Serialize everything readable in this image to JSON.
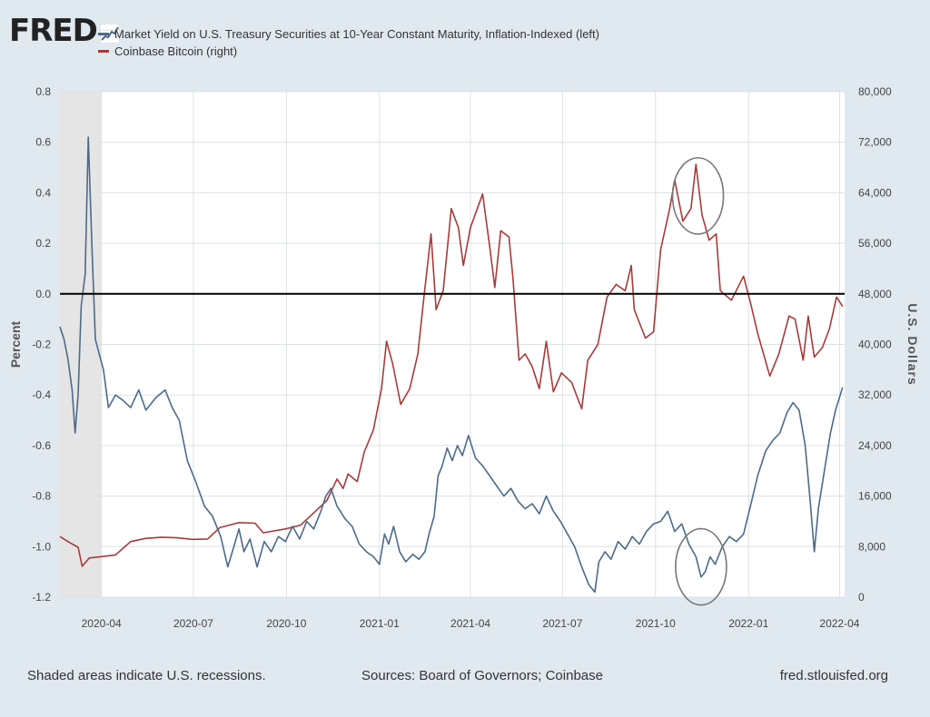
{
  "header": {
    "logo_text": "FRED"
  },
  "chart_data": {
    "type": "line",
    "series": [
      {
        "name": "Market Yield on U.S. Treasury Securities at 10-Year Constant Maturity, Inflation-Indexed (left)",
        "axis": "left",
        "color": "#4d6a8a",
        "points": [
          [
            "2020-02-20",
            -0.13
          ],
          [
            "2020-02-24",
            -0.18
          ],
          [
            "2020-02-28",
            -0.26
          ],
          [
            "2020-03-03",
            -0.38
          ],
          [
            "2020-03-06",
            -0.55
          ],
          [
            "2020-03-09",
            -0.4
          ],
          [
            "2020-03-12",
            -0.05
          ],
          [
            "2020-03-16",
            0.08
          ],
          [
            "2020-03-19",
            0.62
          ],
          [
            "2020-03-23",
            0.15
          ],
          [
            "2020-03-26",
            -0.18
          ],
          [
            "2020-03-30",
            -0.24
          ],
          [
            "2020-04-03",
            -0.3
          ],
          [
            "2020-04-08",
            -0.45
          ],
          [
            "2020-04-15",
            -0.4
          ],
          [
            "2020-04-22",
            -0.42
          ],
          [
            "2020-04-30",
            -0.45
          ],
          [
            "2020-05-08",
            -0.38
          ],
          [
            "2020-05-15",
            -0.46
          ],
          [
            "2020-05-25",
            -0.41
          ],
          [
            "2020-06-03",
            -0.38
          ],
          [
            "2020-06-10",
            -0.45
          ],
          [
            "2020-06-17",
            -0.5
          ],
          [
            "2020-06-25",
            -0.66
          ],
          [
            "2020-07-03",
            -0.74
          ],
          [
            "2020-07-12",
            -0.84
          ],
          [
            "2020-07-20",
            -0.88
          ],
          [
            "2020-07-28",
            -0.96
          ],
          [
            "2020-08-04",
            -1.08
          ],
          [
            "2020-08-10",
            -1.0
          ],
          [
            "2020-08-15",
            -0.93
          ],
          [
            "2020-08-20",
            -1.02
          ],
          [
            "2020-08-26",
            -0.97
          ],
          [
            "2020-09-02",
            -1.08
          ],
          [
            "2020-09-09",
            -0.98
          ],
          [
            "2020-09-16",
            -1.02
          ],
          [
            "2020-09-23",
            -0.96
          ],
          [
            "2020-09-30",
            -0.98
          ],
          [
            "2020-10-07",
            -0.92
          ],
          [
            "2020-10-14",
            -0.97
          ],
          [
            "2020-10-21",
            -0.9
          ],
          [
            "2020-10-28",
            -0.93
          ],
          [
            "2020-11-04",
            -0.86
          ],
          [
            "2020-11-09",
            -0.8
          ],
          [
            "2020-11-14",
            -0.77
          ],
          [
            "2020-11-20",
            -0.84
          ],
          [
            "2020-11-28",
            -0.89
          ],
          [
            "2020-12-05",
            -0.92
          ],
          [
            "2020-12-12",
            -0.99
          ],
          [
            "2020-12-19",
            -1.02
          ],
          [
            "2020-12-26",
            -1.04
          ],
          [
            "2021-01-01",
            -1.07
          ],
          [
            "2021-01-06",
            -0.95
          ],
          [
            "2021-01-10",
            -0.99
          ],
          [
            "2021-01-15",
            -0.92
          ],
          [
            "2021-01-21",
            -1.02
          ],
          [
            "2021-01-27",
            -1.06
          ],
          [
            "2021-02-03",
            -1.03
          ],
          [
            "2021-02-09",
            -1.05
          ],
          [
            "2021-02-15",
            -1.02
          ],
          [
            "2021-02-19",
            -0.95
          ],
          [
            "2021-02-24",
            -0.88
          ],
          [
            "2021-02-28",
            -0.72
          ],
          [
            "2021-03-04",
            -0.68
          ],
          [
            "2021-03-09",
            -0.61
          ],
          [
            "2021-03-14",
            -0.66
          ],
          [
            "2021-03-19",
            -0.6
          ],
          [
            "2021-03-24",
            -0.64
          ],
          [
            "2021-03-30",
            -0.56
          ],
          [
            "2021-04-06",
            -0.65
          ],
          [
            "2021-04-13",
            -0.68
          ],
          [
            "2021-04-20",
            -0.72
          ],
          [
            "2021-04-27",
            -0.76
          ],
          [
            "2021-05-04",
            -0.8
          ],
          [
            "2021-05-11",
            -0.77
          ],
          [
            "2021-05-18",
            -0.82
          ],
          [
            "2021-05-25",
            -0.85
          ],
          [
            "2021-06-01",
            -0.83
          ],
          [
            "2021-06-08",
            -0.87
          ],
          [
            "2021-06-15",
            -0.8
          ],
          [
            "2021-06-22",
            -0.86
          ],
          [
            "2021-06-29",
            -0.9
          ],
          [
            "2021-07-06",
            -0.95
          ],
          [
            "2021-07-13",
            -1.0
          ],
          [
            "2021-07-20",
            -1.08
          ],
          [
            "2021-07-27",
            -1.15
          ],
          [
            "2021-08-02",
            -1.18
          ],
          [
            "2021-08-06",
            -1.06
          ],
          [
            "2021-08-12",
            -1.02
          ],
          [
            "2021-08-18",
            -1.05
          ],
          [
            "2021-08-25",
            -0.98
          ],
          [
            "2021-09-01",
            -1.01
          ],
          [
            "2021-09-08",
            -0.96
          ],
          [
            "2021-09-15",
            -0.99
          ],
          [
            "2021-09-22",
            -0.94
          ],
          [
            "2021-09-29",
            -0.91
          ],
          [
            "2021-10-06",
            -0.9
          ],
          [
            "2021-10-13",
            -0.86
          ],
          [
            "2021-10-20",
            -0.94
          ],
          [
            "2021-10-27",
            -0.91
          ],
          [
            "2021-11-03",
            -0.99
          ],
          [
            "2021-11-10",
            -1.04
          ],
          [
            "2021-11-15",
            -1.12
          ],
          [
            "2021-11-19",
            -1.1
          ],
          [
            "2021-11-24",
            -1.04
          ],
          [
            "2021-11-29",
            -1.07
          ],
          [
            "2021-12-06",
            -1.0
          ],
          [
            "2021-12-13",
            -0.96
          ],
          [
            "2021-12-20",
            -0.98
          ],
          [
            "2021-12-27",
            -0.95
          ],
          [
            "2022-01-04",
            -0.82
          ],
          [
            "2022-01-10",
            -0.72
          ],
          [
            "2022-01-18",
            -0.62
          ],
          [
            "2022-01-25",
            -0.58
          ],
          [
            "2022-02-01",
            -0.55
          ],
          [
            "2022-02-08",
            -0.47
          ],
          [
            "2022-02-14",
            -0.43
          ],
          [
            "2022-02-20",
            -0.46
          ],
          [
            "2022-02-26",
            -0.6
          ],
          [
            "2022-03-03",
            -0.82
          ],
          [
            "2022-03-07",
            -1.02
          ],
          [
            "2022-03-11",
            -0.85
          ],
          [
            "2022-03-17",
            -0.7
          ],
          [
            "2022-03-23",
            -0.55
          ],
          [
            "2022-03-28",
            -0.46
          ],
          [
            "2022-04-04",
            -0.37
          ]
        ]
      },
      {
        "name": "Coinbase Bitcoin (right)",
        "axis": "right",
        "color": "#a83a3a",
        "points": [
          [
            "2020-02-20",
            9600
          ],
          [
            "2020-03-01",
            8600
          ],
          [
            "2020-03-09",
            7900
          ],
          [
            "2020-03-13",
            4900
          ],
          [
            "2020-03-20",
            6200
          ],
          [
            "2020-03-31",
            6400
          ],
          [
            "2020-04-15",
            6700
          ],
          [
            "2020-04-30",
            8800
          ],
          [
            "2020-05-15",
            9300
          ],
          [
            "2020-05-31",
            9500
          ],
          [
            "2020-06-15",
            9400
          ],
          [
            "2020-06-30",
            9150
          ],
          [
            "2020-07-15",
            9200
          ],
          [
            "2020-07-27",
            11000
          ],
          [
            "2020-08-15",
            11800
          ],
          [
            "2020-08-31",
            11700
          ],
          [
            "2020-09-08",
            10200
          ],
          [
            "2020-09-30",
            10800
          ],
          [
            "2020-10-15",
            11400
          ],
          [
            "2020-10-31",
            13800
          ],
          [
            "2020-11-10",
            15300
          ],
          [
            "2020-11-20",
            18700
          ],
          [
            "2020-11-26",
            17200
          ],
          [
            "2020-12-01",
            19500
          ],
          [
            "2020-12-10",
            18300
          ],
          [
            "2020-12-17",
            23000
          ],
          [
            "2020-12-26",
            26500
          ],
          [
            "2021-01-03",
            33000
          ],
          [
            "2021-01-08",
            40500
          ],
          [
            "2021-01-14",
            37000
          ],
          [
            "2021-01-22",
            30500
          ],
          [
            "2021-01-31",
            33000
          ],
          [
            "2021-02-08",
            38500
          ],
          [
            "2021-02-14",
            47500
          ],
          [
            "2021-02-21",
            57500
          ],
          [
            "2021-02-26",
            45500
          ],
          [
            "2021-03-05",
            48500
          ],
          [
            "2021-03-13",
            61500
          ],
          [
            "2021-03-20",
            58500
          ],
          [
            "2021-03-25",
            52500
          ],
          [
            "2021-04-01",
            58500
          ],
          [
            "2021-04-13",
            63800
          ],
          [
            "2021-04-20",
            55500
          ],
          [
            "2021-04-25",
            49000
          ],
          [
            "2021-05-01",
            58000
          ],
          [
            "2021-05-09",
            57000
          ],
          [
            "2021-05-13",
            50500
          ],
          [
            "2021-05-19",
            37500
          ],
          [
            "2021-05-25",
            38500
          ],
          [
            "2021-06-01",
            36500
          ],
          [
            "2021-06-08",
            33000
          ],
          [
            "2021-06-15",
            40500
          ],
          [
            "2021-06-22",
            32500
          ],
          [
            "2021-06-30",
            35500
          ],
          [
            "2021-07-10",
            34000
          ],
          [
            "2021-07-20",
            29800
          ],
          [
            "2021-07-26",
            37500
          ],
          [
            "2021-08-05",
            40000
          ],
          [
            "2021-08-14",
            47500
          ],
          [
            "2021-08-23",
            49500
          ],
          [
            "2021-09-01",
            48500
          ],
          [
            "2021-09-07",
            52500
          ],
          [
            "2021-09-10",
            45500
          ],
          [
            "2021-09-21",
            41000
          ],
          [
            "2021-09-29",
            42000
          ],
          [
            "2021-10-06",
            55000
          ],
          [
            "2021-10-15",
            61500
          ],
          [
            "2021-10-20",
            66000
          ],
          [
            "2021-10-28",
            59500
          ],
          [
            "2021-11-05",
            61500
          ],
          [
            "2021-11-10",
            68500
          ],
          [
            "2021-11-16",
            60500
          ],
          [
            "2021-11-23",
            56500
          ],
          [
            "2021-11-30",
            57500
          ],
          [
            "2021-12-04",
            48500
          ],
          [
            "2021-12-15",
            47000
          ],
          [
            "2021-12-27",
            50800
          ],
          [
            "2022-01-03",
            46500
          ],
          [
            "2022-01-10",
            41800
          ],
          [
            "2022-01-22",
            35000
          ],
          [
            "2022-01-31",
            38500
          ],
          [
            "2022-02-10",
            44500
          ],
          [
            "2022-02-16",
            44000
          ],
          [
            "2022-02-24",
            37500
          ],
          [
            "2022-03-01",
            44500
          ],
          [
            "2022-03-07",
            38000
          ],
          [
            "2022-03-15",
            39500
          ],
          [
            "2022-03-22",
            42500
          ],
          [
            "2022-03-29",
            47500
          ],
          [
            "2022-04-04",
            46000
          ]
        ]
      }
    ],
    "x_ticks": [
      "2020-04",
      "2020-07",
      "2020-10",
      "2021-01",
      "2021-04",
      "2021-07",
      "2021-10",
      "2022-01",
      "2022-04"
    ],
    "x_range": [
      "2020-02-20",
      "2022-04-06"
    ],
    "y_left": {
      "label": "Percent",
      "min": -1.2,
      "max": 0.8,
      "ticks": [
        "0.8",
        "0.6",
        "0.4",
        "0.2",
        "0.0",
        "-0.2",
        "-0.4",
        "-0.6",
        "-0.8",
        "-1.0",
        "-1.2"
      ]
    },
    "y_right": {
      "label": "U.S. Dollars",
      "min": 0,
      "max": 80000,
      "ticks": [
        "80,000",
        "72,000",
        "64,000",
        "56,000",
        "48,000",
        "40,000",
        "32,000",
        "24,000",
        "16,000",
        "8,000",
        "0"
      ]
    },
    "zero_line": 0.0,
    "recession": {
      "start": "2020-02-20",
      "end": "2020-04-01",
      "color": "#e5e5e5"
    },
    "annotations": [
      {
        "type": "circle",
        "date": "2021-11-12",
        "value_right": 63500
      },
      {
        "type": "circle",
        "date": "2021-11-15",
        "value_left": -1.08
      }
    ],
    "grid": true,
    "legend_position": "top-left",
    "background": "#ffffff"
  },
  "footer": {
    "note": "Shaded areas indicate U.S. recessions.",
    "sources": "Sources: Board of Governors; Coinbase",
    "site": "fred.stlouisfed.org"
  }
}
